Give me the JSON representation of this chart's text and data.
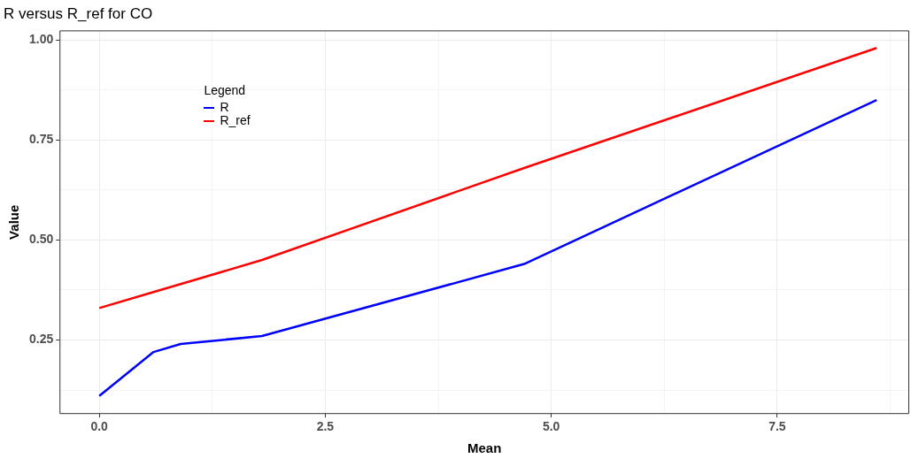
{
  "chart_data": {
    "type": "line",
    "title": "R versus R_ref for CO",
    "xlabel": "Mean",
    "ylabel": "Value",
    "legend_title": "Legend",
    "legend": "top left",
    "grid": true,
    "marker": "none",
    "line_style": "solid",
    "xlim": [
      -0.44,
      8.96
    ],
    "ylim": [
      0.065,
      1.024
    ],
    "xticks": [
      {
        "value": 0,
        "label": "0.0"
      },
      {
        "value": 1.25,
        "label": null
      },
      {
        "value": 2.5,
        "label": "2.5"
      },
      {
        "value": 3.75,
        "label": null
      },
      {
        "value": 5,
        "label": "5.0"
      },
      {
        "value": 6.25,
        "label": null
      },
      {
        "value": 7.5,
        "label": "7.5"
      },
      {
        "value": 8.75,
        "label": null
      }
    ],
    "yticks": [
      {
        "value": 0.125,
        "label": null
      },
      {
        "value": 0.25,
        "label": "0.25"
      },
      {
        "value": 0.375,
        "label": null
      },
      {
        "value": 0.5,
        "label": "0.50"
      },
      {
        "value": 0.625,
        "label": null
      },
      {
        "value": 0.75,
        "label": "0.75"
      },
      {
        "value": 0.875,
        "label": null
      },
      {
        "value": 1,
        "label": "1.00"
      }
    ],
    "x": [
      0,
      0.6,
      0.9,
      1.8,
      4.7,
      8.6
    ],
    "series": [
      {
        "name": "R",
        "color": "#0000ff",
        "values": [
          0.11,
          0.22,
          0.24,
          0.26,
          0.44,
          0.85
        ]
      },
      {
        "name": "R_ref",
        "color": "#ff0000",
        "values": [
          0.33,
          0.37,
          0.39,
          0.45,
          0.68,
          0.98
        ]
      }
    ]
  }
}
